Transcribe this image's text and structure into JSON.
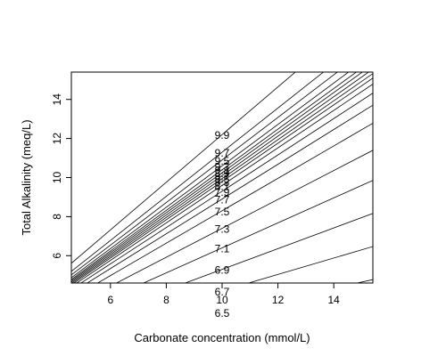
{
  "colors": {
    "line": "#000000",
    "background": "#ffffff"
  },
  "chart_data": {
    "type": "line",
    "title": "",
    "xlabel": "Carbonate concentration (mmol/L)",
    "ylabel": "Total Alkalinity (meq/L)",
    "xlim": [
      4.6,
      15.4
    ],
    "ylim": [
      4.6,
      15.4
    ],
    "xticks": [
      6,
      8,
      10,
      12,
      14
    ],
    "yticks": [
      6,
      8,
      10,
      12,
      14
    ],
    "grid": false,
    "legend": "none",
    "series_note": "pH isopleths; each line passes through the origin with slope ta_per_carbonate",
    "series": [
      {
        "name": "6.5",
        "ta_per_carbonate": 0.31
      },
      {
        "name": "6.7",
        "ta_per_carbonate": 0.42
      },
      {
        "name": "6.9",
        "ta_per_carbonate": 0.53
      },
      {
        "name": "7.1",
        "ta_per_carbonate": 0.64
      },
      {
        "name": "7.3",
        "ta_per_carbonate": 0.74
      },
      {
        "name": "7.5",
        "ta_per_carbonate": 0.83
      },
      {
        "name": "7.7",
        "ta_per_carbonate": 0.89
      },
      {
        "name": "7.9",
        "ta_per_carbonate": 0.93
      },
      {
        "name": "8.1",
        "ta_per_carbonate": 0.96
      },
      {
        "name": "8.3",
        "ta_per_carbonate": 0.98
      },
      {
        "name": "8.5",
        "ta_per_carbonate": 0.995
      },
      {
        "name": "8.7",
        "ta_per_carbonate": 1.01
      },
      {
        "name": "8.9",
        "ta_per_carbonate": 1.025
      },
      {
        "name": "9.1",
        "ta_per_carbonate": 1.04
      },
      {
        "name": "9.3",
        "ta_per_carbonate": 1.06
      },
      {
        "name": "9.5",
        "ta_per_carbonate": 1.09
      },
      {
        "name": "9.7",
        "ta_per_carbonate": 1.13
      },
      {
        "name": "9.9",
        "ta_per_carbonate": 1.22
      }
    ]
  }
}
